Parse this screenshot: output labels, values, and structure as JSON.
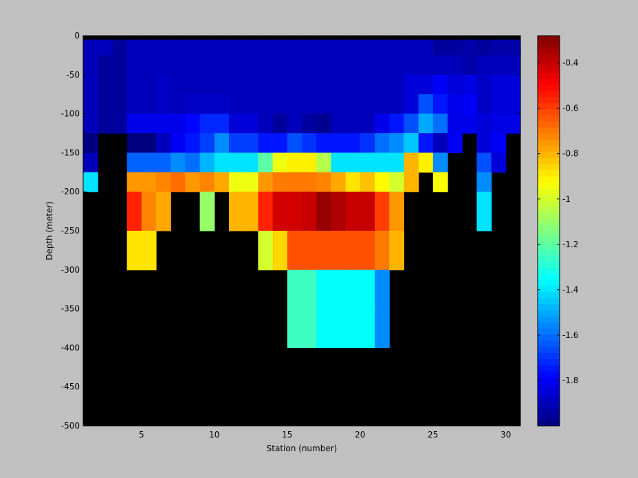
{
  "chart_data": {
    "type": "heatmap",
    "title": "",
    "xlabel": "Station (number)",
    "ylabel": "Depth (meter)",
    "xlim": [
      1,
      31
    ],
    "ylim": [
      -500,
      0
    ],
    "xticks": [
      5,
      10,
      15,
      20,
      25,
      30
    ],
    "yticks": [
      0,
      -50,
      -100,
      -150,
      -200,
      -250,
      -300,
      -350,
      -400,
      -450,
      -500
    ],
    "colorbar": {
      "colormap": "jet",
      "clim": [
        -2,
        -0.28
      ],
      "ticks": [
        -0.4,
        -0.6,
        -0.8,
        -1,
        -1.2,
        -1.4,
        -1.6,
        -1.8
      ]
    },
    "background_color": "#000000",
    "depths": [
      -5,
      -25,
      -50,
      -75,
      -100,
      -125,
      -150,
      -175,
      -200,
      -250,
      -300,
      -350,
      -400
    ],
    "stations": [
      1,
      2,
      3,
      4,
      5,
      6,
      7,
      8,
      9,
      10,
      11,
      12,
      13,
      14,
      15,
      16,
      17,
      18,
      19,
      20,
      21,
      22,
      23,
      24,
      25,
      26,
      27,
      28,
      29,
      30
    ],
    "values": [
      [
        -1.9,
        -1.9,
        -1.95,
        -1.9,
        -1.9,
        -1.9,
        -1.9,
        -1.9,
        -1.9,
        -1.9,
        -1.9,
        -1.9,
        -1.9,
        -1.9,
        -1.9,
        -1.9,
        -1.9,
        -1.9,
        -1.9,
        -1.9,
        -1.9,
        -1.9,
        -1.9,
        -1.9,
        -1.95,
        -1.95,
        -1.93,
        -1.95,
        -1.93,
        -1.93
      ],
      [
        -1.9,
        -1.95,
        -1.95,
        -1.9,
        -1.9,
        -1.9,
        -1.9,
        -1.9,
        -1.9,
        -1.9,
        -1.9,
        -1.9,
        -1.9,
        -1.9,
        -1.9,
        -1.9,
        -1.9,
        -1.9,
        -1.9,
        -1.9,
        -1.9,
        -1.9,
        -1.9,
        -1.9,
        -1.9,
        -1.9,
        -1.93,
        -1.9,
        -1.9,
        -1.9
      ],
      [
        -1.9,
        -1.95,
        -1.95,
        -1.9,
        -1.9,
        -1.88,
        -1.9,
        -1.9,
        -1.9,
        -1.9,
        -1.9,
        -1.9,
        -1.9,
        -1.9,
        -1.9,
        -1.9,
        -1.9,
        -1.9,
        -1.9,
        -1.9,
        -1.9,
        -1.9,
        -1.85,
        -1.85,
        -1.8,
        -1.85,
        -1.83,
        -1.88,
        -1.85,
        -1.85
      ],
      [
        -1.9,
        -1.95,
        -1.95,
        -1.9,
        -1.9,
        -1.88,
        -1.9,
        -1.88,
        -1.88,
        -1.88,
        -1.9,
        -1.9,
        -1.9,
        -1.9,
        -1.9,
        -1.9,
        -1.9,
        -1.9,
        -1.9,
        -1.9,
        -1.9,
        -1.9,
        -1.85,
        -1.65,
        -1.75,
        -1.82,
        -1.8,
        -1.88,
        -1.85,
        -1.85
      ],
      [
        -1.9,
        -1.95,
        -1.95,
        -1.82,
        -1.82,
        -1.82,
        -1.82,
        -1.78,
        -1.72,
        -1.72,
        -1.85,
        -1.85,
        -1.9,
        -1.95,
        -1.9,
        -1.95,
        -1.97,
        -1.9,
        -1.9,
        -1.9,
        -1.82,
        -1.75,
        -1.65,
        -1.5,
        -1.6,
        -1.82,
        -1.82,
        -1.85,
        -1.83,
        -1.83
      ],
      [
        -2.0,
        null,
        null,
        -2.0,
        -2.0,
        -1.9,
        -1.8,
        -1.75,
        -1.68,
        -1.55,
        -1.68,
        -1.68,
        -1.75,
        -1.75,
        -1.65,
        -1.7,
        -1.75,
        -1.75,
        -1.75,
        -1.7,
        -1.6,
        -1.55,
        -1.45,
        -1.75,
        -1.9,
        -1.8,
        null,
        -1.85,
        -1.8,
        null
      ],
      [
        -1.9,
        null,
        null,
        -1.62,
        -1.62,
        -1.62,
        -1.55,
        -1.6,
        -1.48,
        -1.4,
        -1.4,
        -1.4,
        -1.2,
        -0.95,
        -0.9,
        -0.9,
        -1.05,
        -1.4,
        -1.4,
        -1.4,
        -1.4,
        -1.4,
        -0.8,
        -0.9,
        -1.55,
        null,
        null,
        -1.65,
        -1.85,
        null
      ],
      [
        -1.4,
        null,
        null,
        -0.75,
        -0.75,
        -0.72,
        -0.68,
        -0.75,
        -0.72,
        -0.78,
        -0.95,
        -0.95,
        -0.75,
        -0.7,
        -0.7,
        -0.7,
        -0.72,
        -0.78,
        -0.88,
        -0.82,
        -0.92,
        -1.0,
        -0.8,
        null,
        -0.93,
        null,
        null,
        -1.55,
        null,
        null
      ],
      [
        null,
        null,
        null,
        -0.55,
        -0.72,
        -0.78,
        null,
        null,
        -1.1,
        null,
        -0.8,
        -0.8,
        -0.55,
        -0.42,
        -0.42,
        -0.4,
        -0.32,
        -0.36,
        -0.4,
        -0.4,
        -0.6,
        -0.75,
        null,
        null,
        null,
        null,
        null,
        -1.4,
        null,
        null
      ],
      [
        null,
        null,
        null,
        -0.88,
        -0.88,
        null,
        null,
        null,
        null,
        null,
        null,
        null,
        -1.0,
        -0.86,
        -0.63,
        -0.63,
        -0.63,
        -0.63,
        -0.63,
        -0.63,
        -0.7,
        -0.8,
        null,
        null,
        null,
        null,
        null,
        null,
        null,
        null
      ],
      [
        null,
        null,
        null,
        null,
        null,
        null,
        null,
        null,
        null,
        null,
        null,
        null,
        null,
        null,
        -1.25,
        -1.25,
        -1.35,
        -1.35,
        -1.35,
        -1.35,
        -1.55,
        null,
        null,
        null,
        null,
        null,
        null,
        null,
        null,
        null
      ],
      [
        null,
        null,
        null,
        null,
        null,
        null,
        null,
        null,
        null,
        null,
        null,
        null,
        null,
        null,
        -1.25,
        -1.25,
        -1.35,
        -1.35,
        -1.35,
        -1.35,
        -1.55,
        null,
        null,
        null,
        null,
        null,
        null,
        null,
        null,
        null
      ],
      [
        null,
        null,
        null,
        null,
        null,
        null,
        null,
        null,
        null,
        null,
        null,
        null,
        null,
        null,
        null,
        null,
        null,
        null,
        null,
        null,
        null,
        null,
        null,
        null,
        null,
        null,
        null,
        null,
        null,
        null
      ]
    ]
  }
}
